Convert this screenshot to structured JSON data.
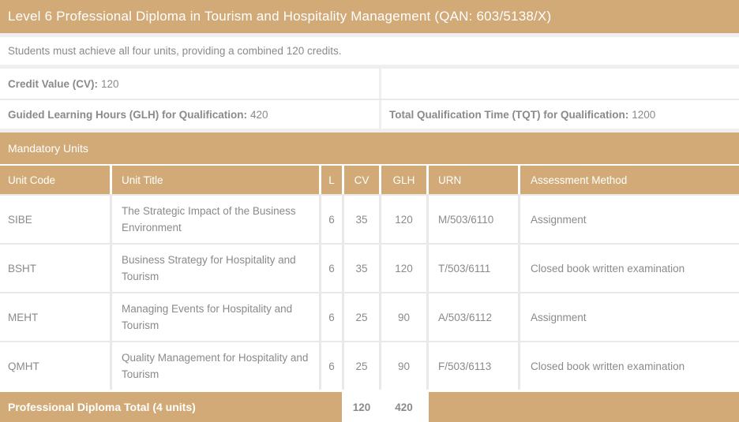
{
  "title": "Level 6 Professional Diploma in Tourism and Hospitality Management (QAN: 603/5138/X)",
  "description": "Students must achieve all four units, providing a combined 120 credits.",
  "summary": {
    "credit_value_label": "Credit Value (CV):",
    "credit_value": "120",
    "glh_label": "Guided Learning Hours (GLH) for Qualification:",
    "glh_value": "420",
    "tqt_label": "Total Qualification Time (TQT) for Qualification:",
    "tqt_value": "1200"
  },
  "mandatory_units": {
    "section_title": "Mandatory Units",
    "columns": [
      "Unit Code",
      "Unit Title",
      "L",
      "CV",
      "GLH",
      "URN",
      "Assessment Method"
    ],
    "rows": [
      {
        "unit_code": "SIBE",
        "unit_title": "The Strategic Impact of the Business Environment",
        "level": "6",
        "cv": "35",
        "glh": "120",
        "urn": "M/503/6110",
        "assessment": "Assignment"
      },
      {
        "unit_code": "BSHT",
        "unit_title": "Business Strategy for Hospitality and Tourism",
        "level": "6",
        "cv": "35",
        "glh": "120",
        "urn": "T/503/6111",
        "assessment": "Closed book written examination"
      },
      {
        "unit_code": "MEHT",
        "unit_title": "Managing Events for Hospitality and Tourism",
        "level": "6",
        "cv": "25",
        "glh": "90",
        "urn": "A/503/6112",
        "assessment": "Assignment"
      },
      {
        "unit_code": "QMHT",
        "unit_title": "Quality Management for Hospitality and Tourism",
        "level": "6",
        "cv": "25",
        "glh": "90",
        "urn": "F/503/6113",
        "assessment": "Closed book written examination"
      }
    ]
  },
  "total_row": {
    "label": "Professional Diploma Total (4 units)",
    "cv": "120",
    "glh": "420"
  },
  "colors": {
    "accent_tan": "#d1aa78",
    "body_text": "#8a8a8a",
    "cell_background": "#ffffff",
    "page_background": "#f1efee"
  }
}
